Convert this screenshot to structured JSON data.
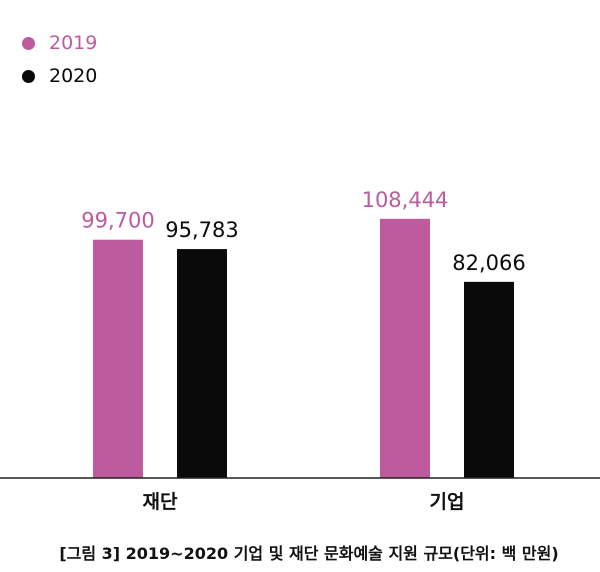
{
  "chart_data": {
    "type": "bar",
    "categories": [
      "재단",
      "기업"
    ],
    "series": [
      {
        "name": "2019",
        "values": [
          99700,
          108444
        ],
        "labels": [
          "99,700",
          "108,444"
        ],
        "color": "#bd5b9e"
      },
      {
        "name": "2020",
        "values": [
          95783,
          82066
        ],
        "labels": [
          "95,783",
          "82,066"
        ],
        "color": "#0a0a0a"
      }
    ],
    "ylim": [
      0,
      200000
    ],
    "grid": false,
    "legend_placement": "top-left",
    "caption": "[그림 3] 2019~2020 기업 및 재단 문화예술 지원 규모(단위: 백 만원)"
  }
}
